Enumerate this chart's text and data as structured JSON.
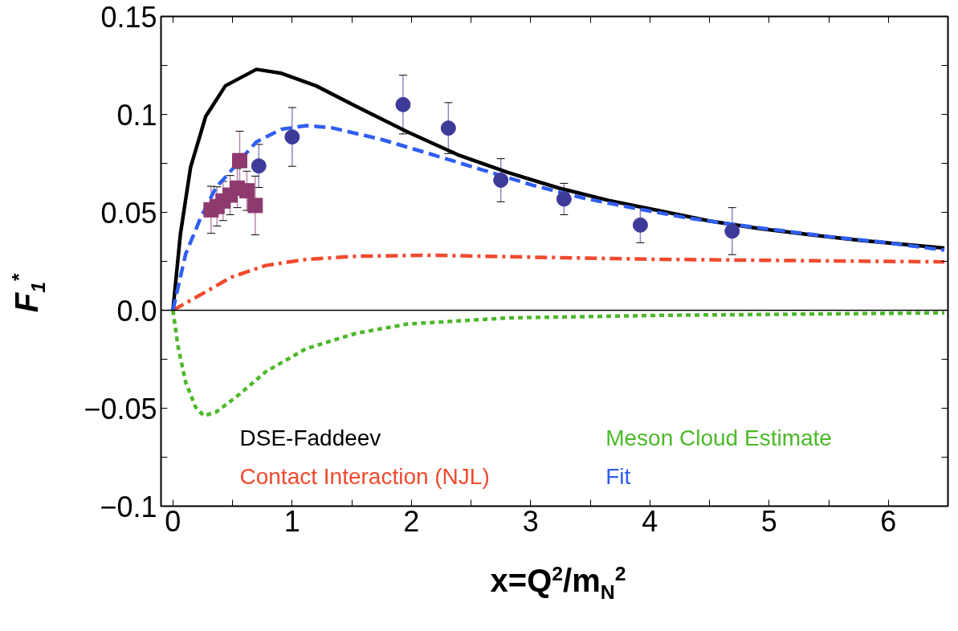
{
  "chart_data": {
    "type": "line",
    "xlabel": "x=Q$^{2}$/m$_{N}$$^{2}$",
    "ylabel": "F$_{1}$$^{*}$",
    "xlim": [
      -0.1,
      6.5
    ],
    "ylim": [
      -0.1,
      0.15
    ],
    "xticks": [
      0,
      {
        "value": 0.5,
        "label": null
      },
      1,
      {
        "value": 1.5,
        "label": null
      },
      2,
      {
        "value": 2.5,
        "label": null
      },
      3,
      {
        "value": 3.5,
        "label": null
      },
      4,
      {
        "value": 4.5,
        "label": null
      },
      5,
      {
        "value": 5.5,
        "label": null
      },
      6
    ],
    "yticks": [
      {
        "value": -0.1,
        "label": "−0.1"
      },
      {
        "value": -0.075,
        "label": null
      },
      {
        "value": -0.05,
        "label": "−0.05"
      },
      {
        "value": -0.025,
        "label": null
      },
      {
        "value": 0,
        "label": "0.0"
      },
      {
        "value": 0.025,
        "label": null
      },
      0.05,
      {
        "value": 0.075,
        "label": null
      },
      0.1,
      {
        "value": 0.125,
        "label": null
      },
      0.15
    ],
    "grid": false,
    "legend": "bottom",
    "ref_lines": [
      {
        "axis": "y",
        "value": 0,
        "color": "#000000"
      }
    ],
    "series": [
      {
        "name": "DSE-Faddeev",
        "color": "#000000",
        "line_style": "solid",
        "x": [
          0,
          0.063,
          0.148,
          0.275,
          0.44,
          0.7,
          0.91,
          1.2,
          1.54,
          1.97,
          2.39,
          2.81,
          3.23,
          3.66,
          4.08,
          4.5,
          4.92,
          5.35,
          5.77,
          6.47
        ],
        "values": [
          0,
          0.039,
          0.073,
          0.099,
          0.1146,
          0.123,
          0.121,
          0.1146,
          0.104,
          0.091,
          0.0794,
          0.0703,
          0.0625,
          0.056,
          0.0508,
          0.0456,
          0.0417,
          0.0385,
          0.0357,
          0.0318
        ]
      },
      {
        "name": "Contact Interaction (NJL)",
        "color": "#f04a2e",
        "line_style": "dashdot",
        "x": [
          0,
          0.19,
          0.49,
          0.78,
          1.12,
          1.54,
          2.18,
          3.02,
          4.08,
          5.35,
          6.47
        ],
        "values": [
          0,
          0.0065,
          0.0169,
          0.0229,
          0.026,
          0.0276,
          0.0281,
          0.0271,
          0.026,
          0.0253,
          0.0247
        ]
      },
      {
        "name": "Meson Cloud Estimate",
        "color": "#4cb82a",
        "line_style": "dotted",
        "x": [
          0,
          0.042,
          0.106,
          0.19,
          0.26,
          0.36,
          0.53,
          0.78,
          1.12,
          1.54,
          1.97,
          2.81,
          4.08,
          6.47
        ],
        "values": [
          0,
          -0.0182,
          -0.0365,
          -0.0495,
          -0.0539,
          -0.052,
          -0.0443,
          -0.0313,
          -0.0195,
          -0.0117,
          -0.007,
          -0.0039,
          -0.0026,
          -0.0013
        ]
      },
      {
        "name": "Fit",
        "color": "#2f5ef0",
        "line_style": "dashed",
        "x": [
          0,
          0.106,
          0.23,
          0.36,
          0.7,
          0.91,
          1.12,
          1.33,
          1.75,
          2.18,
          2.6,
          3.02,
          3.44,
          3.87,
          4.29,
          4.71,
          5.14,
          5.56,
          5.98,
          6.47
        ],
        "values": [
          0,
          0.0286,
          0.0469,
          0.0625,
          0.086,
          0.0924,
          0.0943,
          0.0932,
          0.0872,
          0.0794,
          0.0716,
          0.0638,
          0.0573,
          0.0521,
          0.0474,
          0.0437,
          0.0404,
          0.0372,
          0.0346,
          0.0307
        ]
      },
      {
        "type": "scatter",
        "marker": "circle",
        "color": "#3e3a9a",
        "x": [
          0.72,
          1.0,
          1.93,
          2.31,
          2.75,
          3.28,
          3.92,
          4.69
        ],
        "values": [
          0.0737,
          0.0885,
          0.105,
          0.093,
          0.0664,
          0.0568,
          0.0435,
          0.0404
        ],
        "errors": [
          0.011,
          0.015,
          0.015,
          0.013,
          0.011,
          0.008,
          0.009,
          0.012
        ]
      },
      {
        "type": "scatter",
        "marker": "square",
        "color": "#8e3a6e",
        "x": [
          0.32,
          0.37,
          0.42,
          0.48,
          0.54,
          0.56,
          0.62,
          0.69
        ],
        "values": [
          0.0513,
          0.053,
          0.0558,
          0.0588,
          0.0624,
          0.0764,
          0.061,
          0.0535
        ],
        "errors": [
          0.012,
          0.01,
          0.01,
          0.01,
          0.01,
          0.015,
          0.01,
          0.015
        ]
      }
    ]
  }
}
